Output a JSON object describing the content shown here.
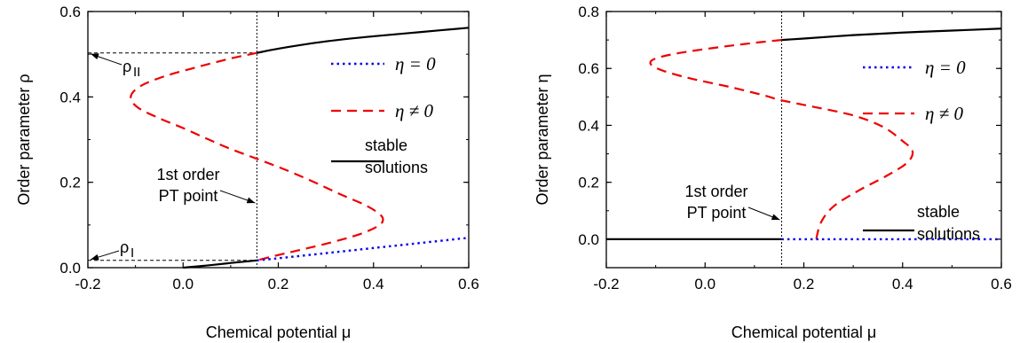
{
  "colors": {
    "eta_zero": "#0000ee",
    "eta_nonzero": "#ee0000",
    "stable": "#000000",
    "guide": "#000000"
  },
  "chart_data": [
    {
      "type": "line",
      "xlabel": "Chemical potential μ",
      "ylabel": "Order parameter ρ",
      "xlim": [
        -0.2,
        0.6
      ],
      "ylim": [
        0.0,
        0.6
      ],
      "xticks": [
        "-0.2",
        "0.0",
        "0.2",
        "0.4",
        "0.6"
      ],
      "yticks": [
        "0.0",
        "0.2",
        "0.4",
        "0.6"
      ],
      "pt_mu": 0.155,
      "rho_I": 0.017,
      "rho_II": 0.503,
      "rho_I_label": "ρ",
      "rho_I_sub": "I",
      "rho_II_label": "ρ",
      "rho_II_sub": "II",
      "pt_label": [
        "1st order",
        "PT point"
      ],
      "legend": [
        {
          "math": "η = 0",
          "style": "dotted"
        },
        {
          "math": "η ≠ 0",
          "style": "dashed"
        },
        {
          "text": [
            "stable",
            "solutions"
          ],
          "style": "solid"
        }
      ],
      "series": [
        {
          "kind": "eta_nonzero",
          "points": [
            [
              0.155,
              0.503
            ],
            [
              0.1,
              0.49
            ],
            [
              0.03,
              0.47
            ],
            [
              -0.04,
              0.448
            ],
            [
              -0.09,
              0.425
            ],
            [
              -0.11,
              0.4
            ],
            [
              -0.095,
              0.375
            ],
            [
              -0.05,
              0.35
            ],
            [
              0.0,
              0.327
            ],
            [
              0.05,
              0.302
            ],
            [
              0.1,
              0.278
            ],
            [
              0.155,
              0.255
            ],
            [
              0.22,
              0.227
            ],
            [
              0.28,
              0.198
            ],
            [
              0.33,
              0.172
            ],
            [
              0.38,
              0.148
            ],
            [
              0.41,
              0.128
            ],
            [
              0.42,
              0.113
            ],
            [
              0.41,
              0.098
            ],
            [
              0.37,
              0.078
            ],
            [
              0.3,
              0.056
            ],
            [
              0.24,
              0.04
            ],
            [
              0.19,
              0.027
            ],
            [
              0.155,
              0.017
            ]
          ]
        },
        {
          "kind": "eta_zero",
          "points": [
            [
              0.155,
              0.017
            ],
            [
              0.2,
              0.022
            ],
            [
              0.3,
              0.034
            ],
            [
              0.4,
              0.046
            ],
            [
              0.5,
              0.058
            ],
            [
              0.6,
              0.07
            ]
          ]
        },
        {
          "kind": "stable",
          "points": [
            [
              0.0,
              0.0
            ],
            [
              0.05,
              0.005
            ],
            [
              0.1,
              0.011
            ],
            [
              0.155,
              0.017
            ]
          ]
        },
        {
          "kind": "stable",
          "points": [
            [
              0.155,
              0.503
            ],
            [
              0.2,
              0.513
            ],
            [
              0.3,
              0.53
            ],
            [
              0.4,
              0.542
            ],
            [
              0.5,
              0.552
            ],
            [
              0.6,
              0.562
            ]
          ]
        }
      ]
    },
    {
      "type": "line",
      "xlabel": "Chemical potential μ",
      "ylabel": "Order parameter η",
      "xlim": [
        -0.2,
        0.6
      ],
      "ylim": [
        -0.1,
        0.8
      ],
      "xticks": [
        "-0.2",
        "0.0",
        "0.2",
        "0.4",
        "0.6"
      ],
      "yticks": [
        "0.0",
        "0.2",
        "0.4",
        "0.6",
        "0.8"
      ],
      "pt_mu": 0.155,
      "pt_label": [
        "1st order",
        "PT point"
      ],
      "legend": [
        {
          "math": "η = 0",
          "style": "dotted"
        },
        {
          "math": "η ≠ 0",
          "style": "dashed"
        },
        {
          "text": [
            "stable",
            "solutions"
          ],
          "style": "solid"
        }
      ],
      "series": [
        {
          "kind": "eta_nonzero",
          "points": [
            [
              0.155,
              0.7
            ],
            [
              0.1,
              0.69
            ],
            [
              0.03,
              0.675
            ],
            [
              -0.05,
              0.655
            ],
            [
              -0.1,
              0.635
            ],
            [
              -0.11,
              0.615
            ],
            [
              -0.085,
              0.592
            ],
            [
              -0.03,
              0.565
            ],
            [
              0.05,
              0.535
            ],
            [
              0.12,
              0.505
            ],
            [
              0.155,
              0.488
            ],
            [
              0.22,
              0.465
            ],
            [
              0.3,
              0.435
            ],
            [
              0.36,
              0.395
            ],
            [
              0.4,
              0.345
            ],
            [
              0.42,
              0.31
            ],
            [
              0.41,
              0.27
            ],
            [
              0.37,
              0.225
            ],
            [
              0.31,
              0.17
            ],
            [
              0.26,
              0.115
            ],
            [
              0.235,
              0.06
            ],
            [
              0.225,
              0.0
            ]
          ]
        },
        {
          "kind": "eta_zero",
          "points": [
            [
              0.155,
              0.0
            ],
            [
              0.6,
              0.0
            ]
          ]
        },
        {
          "kind": "stable",
          "points": [
            [
              -0.2,
              0.0
            ],
            [
              0.155,
              0.0
            ]
          ]
        },
        {
          "kind": "stable",
          "points": [
            [
              0.155,
              0.7
            ],
            [
              0.2,
              0.705
            ],
            [
              0.3,
              0.717
            ],
            [
              0.4,
              0.726
            ],
            [
              0.5,
              0.733
            ],
            [
              0.6,
              0.74
            ]
          ]
        }
      ]
    }
  ]
}
